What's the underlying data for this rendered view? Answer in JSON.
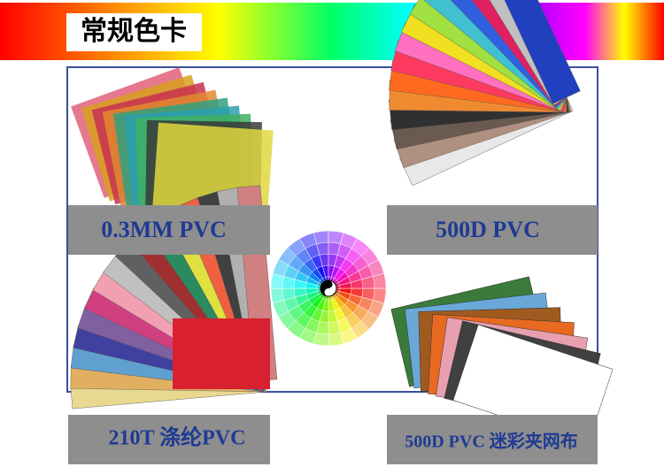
{
  "header": {
    "title": "常规色卡"
  },
  "panels": [
    {
      "label": "0.3MM PVC"
    },
    {
      "label": "500D PVC"
    },
    {
      "label": "210T 涤纶PVC"
    },
    {
      "label": "500D PVC 迷彩夹网布"
    }
  ]
}
